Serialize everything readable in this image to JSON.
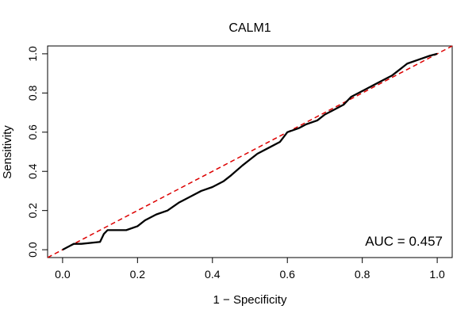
{
  "chart_data": {
    "type": "line",
    "title": "CALM1",
    "xlabel": "1 − Specificity",
    "ylabel": "Sensitivity",
    "xlim": [
      -0.04,
      1.04
    ],
    "ylim": [
      -0.04,
      1.04
    ],
    "xticks": [
      0.0,
      0.2,
      0.4,
      0.6,
      0.8,
      1.0
    ],
    "xtick_labels": [
      "0.0",
      "0.2",
      "0.4",
      "0.6",
      "0.8",
      "1.0"
    ],
    "yticks": [
      0.0,
      0.2,
      0.4,
      0.6,
      0.8,
      1.0
    ],
    "ytick_labels": [
      "0.0",
      "0.2",
      "0.4",
      "0.6",
      "0.8",
      "1.0"
    ],
    "annotation": "AUC = 0.457",
    "series": [
      {
        "name": "ROC curve",
        "color": "#000000",
        "style": "solid",
        "x": [
          0.0,
          0.01,
          0.02,
          0.03,
          0.05,
          0.1,
          0.11,
          0.12,
          0.13,
          0.17,
          0.2,
          0.22,
          0.25,
          0.28,
          0.31,
          0.34,
          0.37,
          0.4,
          0.43,
          0.45,
          0.48,
          0.5,
          0.52,
          0.55,
          0.58,
          0.6,
          0.63,
          0.65,
          0.68,
          0.7,
          0.72,
          0.75,
          0.77,
          0.8,
          0.83,
          0.86,
          0.88,
          0.9,
          0.92,
          0.95,
          0.98,
          1.0
        ],
        "y": [
          0.0,
          0.01,
          0.02,
          0.03,
          0.03,
          0.04,
          0.08,
          0.1,
          0.1,
          0.1,
          0.12,
          0.15,
          0.18,
          0.2,
          0.24,
          0.27,
          0.3,
          0.32,
          0.35,
          0.38,
          0.43,
          0.46,
          0.49,
          0.52,
          0.55,
          0.6,
          0.62,
          0.64,
          0.66,
          0.69,
          0.71,
          0.74,
          0.78,
          0.81,
          0.84,
          0.87,
          0.89,
          0.92,
          0.95,
          0.97,
          0.99,
          1.0
        ]
      },
      {
        "name": "Reference diagonal",
        "color": "#dd0000",
        "style": "dashed",
        "x": [
          -0.04,
          1.04
        ],
        "y": [
          -0.04,
          1.04
        ]
      }
    ]
  }
}
